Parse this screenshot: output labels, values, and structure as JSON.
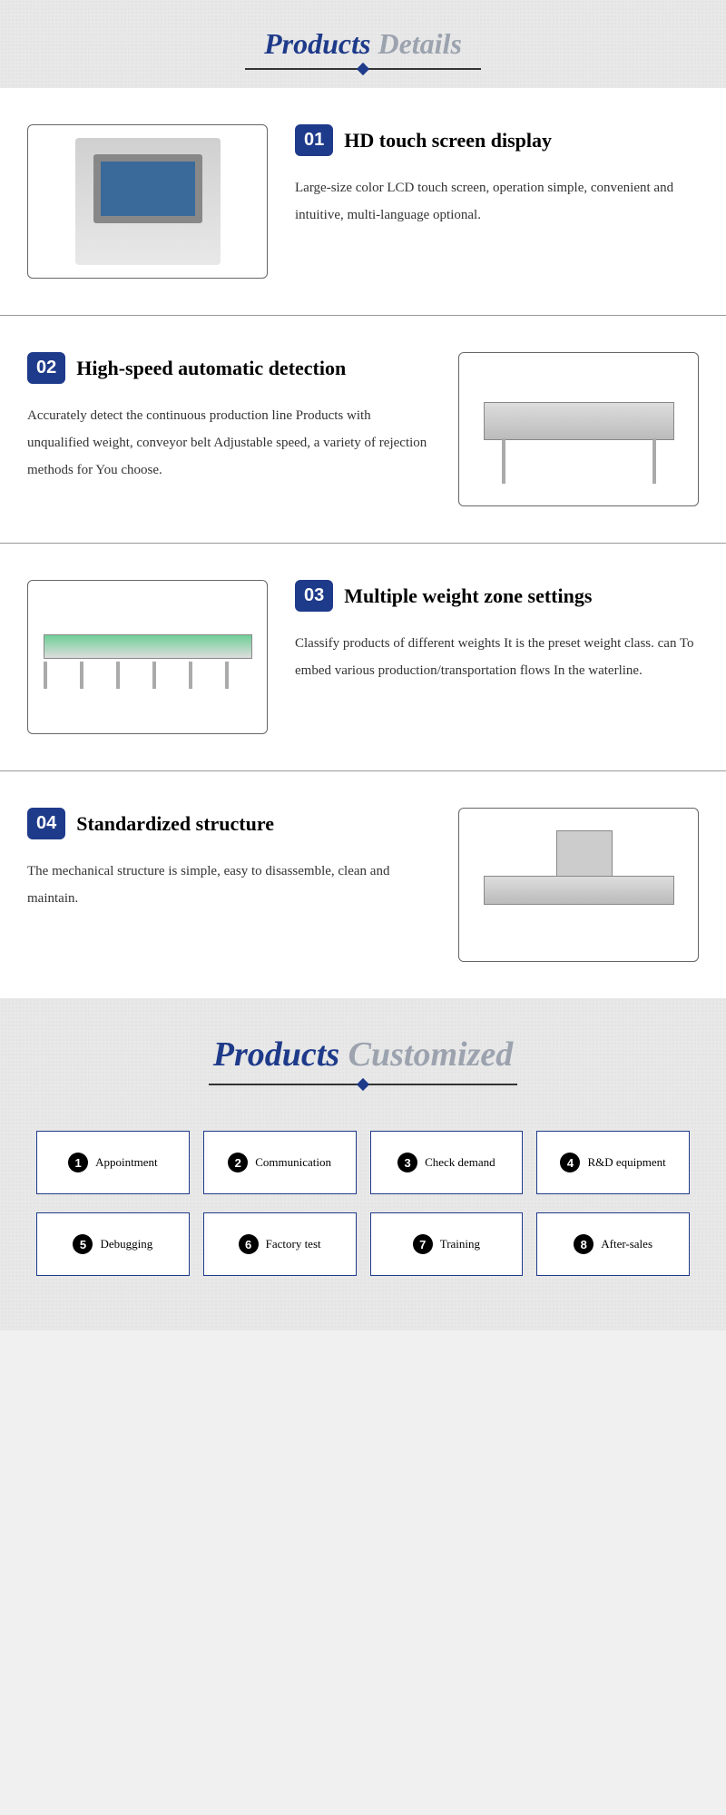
{
  "colors": {
    "primary_blue": "#1e3a8a",
    "gray_text": "#9ca3af",
    "black": "#000000",
    "body_text": "#333333"
  },
  "details_header": {
    "word1": "Products",
    "word2": "Details"
  },
  "features": [
    {
      "num": "01",
      "title": "HD touch screen display",
      "desc": "Large-size color LCD touch screen, operation simple, convenient and intuitive, multi-language optional."
    },
    {
      "num": "02",
      "title": "High-speed automatic detection",
      "desc": "Accurately detect the continuous production line Products with unqualified weight, conveyor belt Adjustable speed, a variety of rejection methods for You choose."
    },
    {
      "num": "03",
      "title": "Multiple weight zone settings",
      "desc": "Classify products of different weights It is the preset weight class. can To embed various production/transportation flows In the waterline."
    },
    {
      "num": "04",
      "title": "Standardized structure",
      "desc": "The mechanical structure is simple, easy to disassemble, clean and maintain."
    }
  ],
  "customized_header": {
    "word1": "Products",
    "word2": "Customized"
  },
  "steps": [
    {
      "num": "1",
      "label": "Appointment"
    },
    {
      "num": "2",
      "label": "Communication"
    },
    {
      "num": "3",
      "label": "Check demand"
    },
    {
      "num": "4",
      "label": "R&D equipment"
    },
    {
      "num": "5",
      "label": "Debugging"
    },
    {
      "num": "6",
      "label": "Factory test"
    },
    {
      "num": "7",
      "label": "Training"
    },
    {
      "num": "8",
      "label": "After-sales"
    }
  ]
}
